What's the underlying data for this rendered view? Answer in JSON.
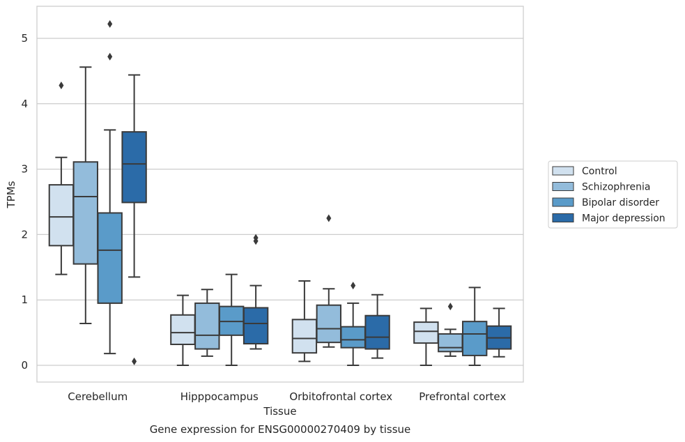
{
  "chart_data": {
    "type": "boxplot",
    "xlabel": "Tissue",
    "ylabel": "TPMs",
    "caption": "Gene expression for ENSG00000270409 by tissue",
    "ylim": [
      -0.25,
      5.5
    ],
    "yticks": [
      0,
      1,
      2,
      3,
      4,
      5
    ],
    "grid": true,
    "legend_position": "right-outside",
    "categories": [
      "Cerebellum",
      "Hipppocampus",
      "Orbitofrontal cortex",
      "Prefrontal cortex"
    ],
    "series": [
      {
        "name": "Control",
        "color": "#d1e1ef",
        "boxes": [
          {
            "whisker_low": 1.39,
            "q1": 1.83,
            "median": 2.27,
            "q3": 2.76,
            "whisker_high": 3.18,
            "outliers": [
              4.28
            ]
          },
          {
            "whisker_low": 0.0,
            "q1": 0.32,
            "median": 0.5,
            "q3": 0.77,
            "whisker_high": 1.07,
            "outliers": []
          },
          {
            "whisker_low": 0.06,
            "q1": 0.19,
            "median": 0.41,
            "q3": 0.7,
            "whisker_high": 1.29,
            "outliers": []
          },
          {
            "whisker_low": 0.0,
            "q1": 0.34,
            "median": 0.52,
            "q3": 0.66,
            "whisker_high": 0.87,
            "outliers": []
          }
        ]
      },
      {
        "name": "Schizophrenia",
        "color": "#93bcdb",
        "boxes": [
          {
            "whisker_low": 0.64,
            "q1": 1.55,
            "median": 2.58,
            "q3": 3.11,
            "whisker_high": 4.56,
            "outliers": []
          },
          {
            "whisker_low": 0.14,
            "q1": 0.25,
            "median": 0.46,
            "q3": 0.95,
            "whisker_high": 1.16,
            "outliers": []
          },
          {
            "whisker_low": 0.28,
            "q1": 0.35,
            "median": 0.56,
            "q3": 0.92,
            "whisker_high": 1.17,
            "outliers": [
              2.25
            ]
          },
          {
            "whisker_low": 0.14,
            "q1": 0.21,
            "median": 0.27,
            "q3": 0.48,
            "whisker_high": 0.55,
            "outliers": [
              0.9
            ]
          }
        ]
      },
      {
        "name": "Bipolar disorder",
        "color": "#5a9bc9",
        "boxes": [
          {
            "whisker_low": 0.18,
            "q1": 0.95,
            "median": 1.76,
            "q3": 2.33,
            "whisker_high": 3.6,
            "outliers": [
              4.72,
              5.22
            ]
          },
          {
            "whisker_low": 0.0,
            "q1": 0.46,
            "median": 0.67,
            "q3": 0.9,
            "whisker_high": 1.39,
            "outliers": []
          },
          {
            "whisker_low": 0.0,
            "q1": 0.27,
            "median": 0.39,
            "q3": 0.59,
            "whisker_high": 0.95,
            "outliers": [
              1.22
            ]
          },
          {
            "whisker_low": 0.0,
            "q1": 0.15,
            "median": 0.48,
            "q3": 0.67,
            "whisker_high": 1.19,
            "outliers": []
          }
        ]
      },
      {
        "name": "Major depression",
        "color": "#2b6ba8",
        "boxes": [
          {
            "whisker_low": 1.35,
            "q1": 2.49,
            "median": 3.08,
            "q3": 3.57,
            "whisker_high": 4.44,
            "outliers": [
              0.06
            ]
          },
          {
            "whisker_low": 0.25,
            "q1": 0.33,
            "median": 0.64,
            "q3": 0.88,
            "whisker_high": 1.22,
            "outliers": [
              1.9,
              1.95
            ]
          },
          {
            "whisker_low": 0.11,
            "q1": 0.25,
            "median": 0.43,
            "q3": 0.76,
            "whisker_high": 1.08,
            "outliers": []
          },
          {
            "whisker_low": 0.13,
            "q1": 0.25,
            "median": 0.42,
            "q3": 0.6,
            "whisker_high": 0.87,
            "outliers": []
          }
        ]
      }
    ]
  }
}
